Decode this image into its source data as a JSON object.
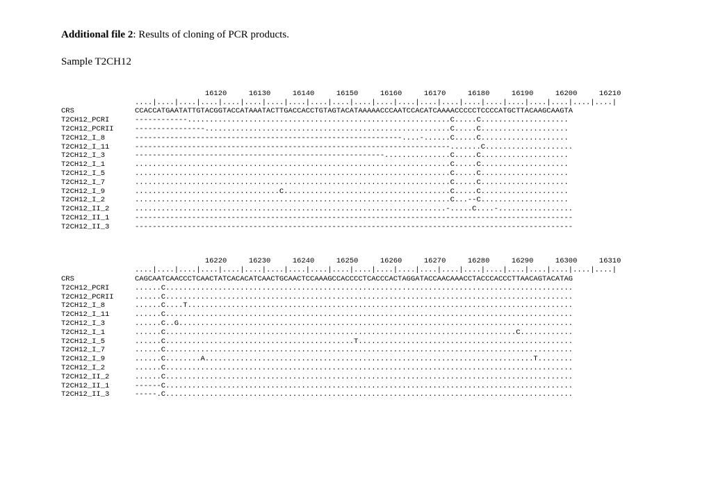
{
  "header": {
    "title_bold": "Additional file 2",
    "title_rest": ": Results of cloning of PCR products."
  },
  "sample_label": "Sample T2CH12",
  "block1": {
    "positions": "                16120     16130     16140     16150     16160     16170     16180     16190     16200     16210",
    "ruler": "....|....|....|....|....|....|....|....|....|....|....|....|....|....|....|....|....|....|....|....|....|....|",
    "rows": [
      {
        "label": "CRS",
        "seq": "CCACCATGAATATTGTACGGTACCATAAATACTTGACCACCTGTAGTACATAAAAACCCAATCCACATCAAAACCCCCTCCCCATGCTTACAAGCAAGTA"
      },
      {
        "label": "T2CH12_PCRI",
        "seq": "------------............................................................C.....C...................."
      },
      {
        "label": "T2CH12_PCRII",
        "seq": "----------------........................................................C.....C...................."
      },
      {
        "label": "T2CH12_I_8",
        "seq": "-------------------------------------------------------------....-......C.....C...................."
      },
      {
        "label": "T2CH12_I_11",
        "seq": "------------------------------------------------------------------------.......C...................."
      },
      {
        "label": "T2CH12_I_3",
        "seq": "---------------------------------------------------------...............C.....C...................."
      },
      {
        "label": "T2CH12_I_1",
        "seq": "........................................................................C.....C...................."
      },
      {
        "label": "T2CH12_I_5",
        "seq": "........................................................................C.....C...................."
      },
      {
        "label": "T2CH12_I_7",
        "seq": "........................................................................C.....C...................."
      },
      {
        "label": "T2CH12_I_9",
        "seq": ".................................C......................................C.....C...................."
      },
      {
        "label": "T2CH12_I_2",
        "seq": "........................................................................C...--C...................."
      },
      {
        "label": "T2CH12_II_2",
        "seq": ".......................................................................-.....C....-................."
      },
      {
        "label": "T2CH12_II_1",
        "seq": "----------------------------------------------------------------------------------------------------"
      },
      {
        "label": "T2CH12_II_3",
        "seq": "----------------------------------------------------------------------------------------------------"
      }
    ]
  },
  "block2": {
    "positions": "                16220     16230     16240     16250     16260     16270     16280     16290     16300     16310",
    "ruler": "....|....|....|....|....|....|....|....|....|....|....|....|....|....|....|....|....|....|....|....|....|....|",
    "rows": [
      {
        "label": "CRS",
        "seq": "CAGCAATCAACCCTCAACTATCACACATCAACTGCAACTCCAAAGCCACCCCTCACCCACTAGGATACCAACAAACCTACCCACCCTTAACAGTACATAG"
      },
      {
        "label": "T2CH12_PCRI",
        "seq": "......C............................................................................................."
      },
      {
        "label": "T2CH12_PCRII",
        "seq": "......C............................................................................................."
      },
      {
        "label": "T2CH12_I_8",
        "seq": "......C....T........................................................................................"
      },
      {
        "label": "T2CH12_I_11",
        "seq": "......C............................................................................................."
      },
      {
        "label": "T2CH12_I_3",
        "seq": "......C..G.........................................................................................."
      },
      {
        "label": "T2CH12_I_1",
        "seq": "......C................................................................................C............"
      },
      {
        "label": "T2CH12_I_5",
        "seq": "......C...........................................T................................................."
      },
      {
        "label": "T2CH12_I_7",
        "seq": "......C............................................................................................."
      },
      {
        "label": "T2CH12_I_9",
        "seq": "......C........A...........................................................................T........"
      },
      {
        "label": "T2CH12_I_2",
        "seq": "......C............................................................................................."
      },
      {
        "label": "T2CH12_II_2",
        "seq": "......C............................................................................................."
      },
      {
        "label": "T2CH12_II_1",
        "seq": "------C............................................................................................."
      },
      {
        "label": "T2CH12_II_3",
        "seq": "-----.C............................................................................................."
      }
    ]
  }
}
